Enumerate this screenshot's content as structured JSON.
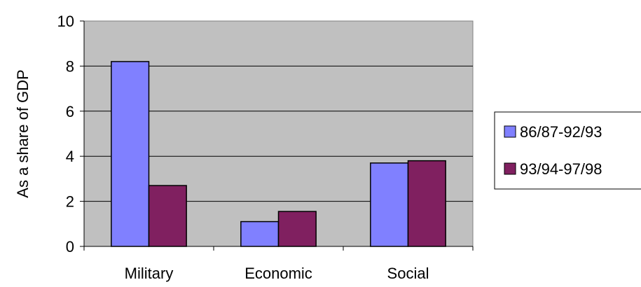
{
  "chart_data": {
    "type": "bar",
    "title": "",
    "xlabel": "",
    "ylabel": "As a share of GDP",
    "categories": [
      "Military",
      "Economic",
      "Social"
    ],
    "series": [
      {
        "name": "86/87-92/93",
        "values": [
          8.2,
          1.1,
          3.7
        ],
        "color": "#8080ff"
      },
      {
        "name": "93/94-97/98",
        "values": [
          2.7,
          1.55,
          3.8
        ],
        "color": "#802060"
      }
    ],
    "ylim": [
      0,
      10
    ],
    "yticks": [
      "0",
      "2",
      "4",
      "6",
      "8",
      "10"
    ],
    "grid": true,
    "plot_background": "#c0c0c0",
    "legend_position": "right"
  }
}
